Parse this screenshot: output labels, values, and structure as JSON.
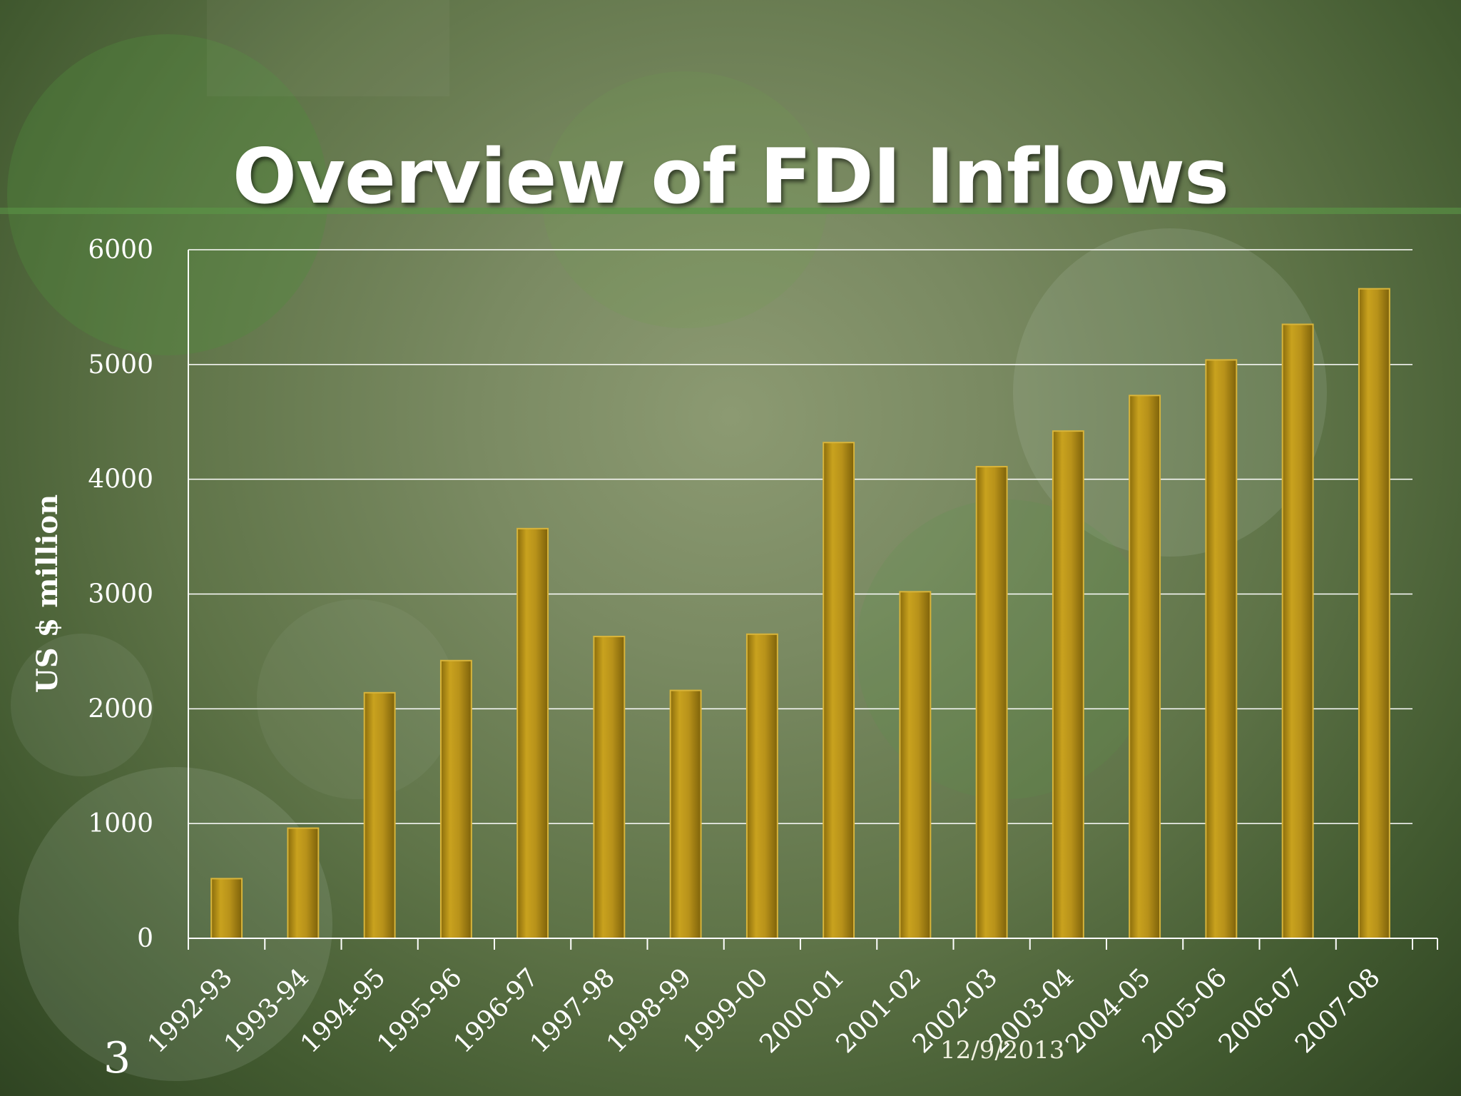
{
  "slide": {
    "title": "Overview of FDI Inflows",
    "slide_number": "3",
    "date": "12/9/2013"
  },
  "colors": {
    "bar": "#b08c14",
    "bar_highlight": "#d6b02a",
    "gridline": "#ffffff",
    "text": "#ffffff"
  },
  "chart_data": {
    "type": "bar",
    "title": "",
    "xlabel": "",
    "ylabel": "US $ million",
    "categories": [
      "1992-93",
      "1993-94",
      "1994-95",
      "1995-96",
      "1996-97",
      "1997-98",
      "1998-99",
      "1999-00",
      "2000-01",
      "2001-02",
      "2002-03",
      "2003-04",
      "2004-05",
      "2005-06",
      "2006-07",
      "2007-08"
    ],
    "values": [
      520,
      960,
      2140,
      2420,
      3570,
      2630,
      2160,
      2650,
      4320,
      3020,
      4110,
      4420,
      4730,
      5040,
      5350,
      5660
    ],
    "ylim": [
      0,
      6000
    ],
    "yticks": [
      0,
      1000,
      2000,
      3000,
      4000,
      5000,
      6000
    ],
    "grid": true,
    "legend": "none"
  }
}
